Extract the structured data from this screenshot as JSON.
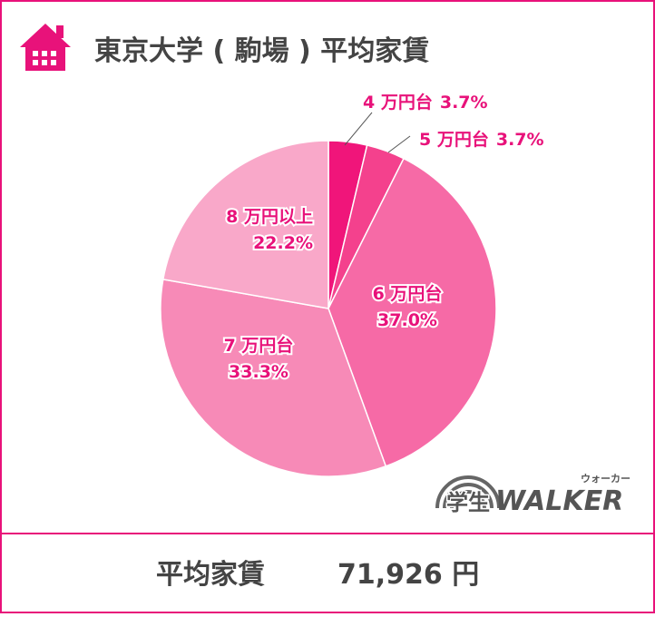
{
  "chart_data": {
    "type": "pie",
    "title": "東京大学 ( 駒場 ) 平均家賃",
    "categories": [
      "4 万円台",
      "5 万円台",
      "6 万円台",
      "7 万円台",
      "8 万円以上"
    ],
    "values": [
      3.7,
      3.7,
      37.0,
      33.3,
      22.2
    ],
    "value_labels": [
      "3.7%",
      "3.7%",
      "37.0%",
      "33.3%",
      "22.2%"
    ],
    "colors": [
      "#f0157a",
      "#f4418d",
      "#f66aa6",
      "#f78ab7",
      "#f9a8c9"
    ]
  },
  "footer": {
    "label": "平均家賃",
    "value": "71,926 円"
  },
  "logo": {
    "main": "学生",
    "brand": "WALKER",
    "ruby": "ウォーカー"
  }
}
